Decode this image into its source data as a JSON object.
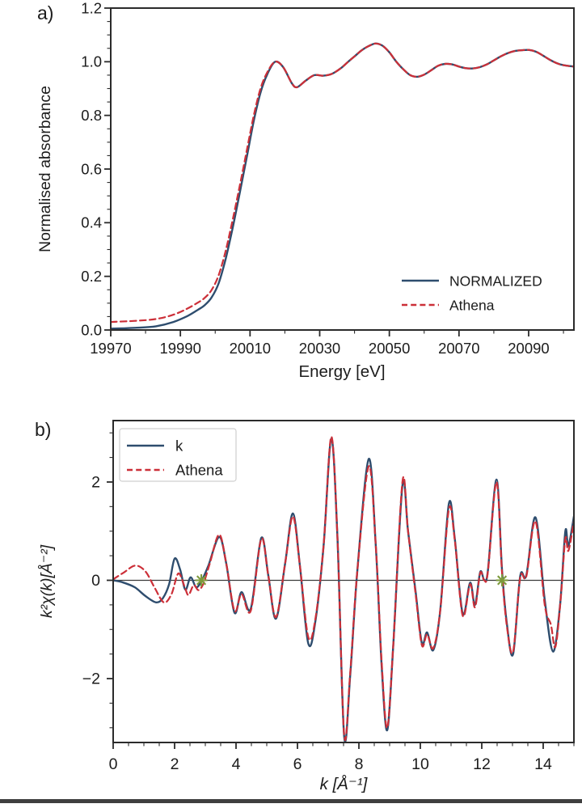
{
  "page": {
    "background": "#ffffff",
    "bottom_bar_color": "#3f3f3f"
  },
  "chart_data": [
    {
      "type": "line",
      "panel_label": "a)",
      "xlabel": "Energy [eV]",
      "ylabel": "Normalised absorbance",
      "xlim": [
        19970,
        20103
      ],
      "ylim": [
        0.0,
        1.2
      ],
      "xticks": [
        19970,
        19990,
        20010,
        20030,
        20050,
        20070,
        20090
      ],
      "yticks": [
        0.0,
        0.2,
        0.4,
        0.6,
        0.8,
        1.0,
        1.2
      ],
      "x_minor_step": 10,
      "y_minor_step": 0.05,
      "grid": false,
      "legend": {
        "position": "lower-right",
        "box": false,
        "entries": [
          {
            "label": "NORMALIZED",
            "color": "#2e4d6e",
            "dash": false
          },
          {
            "label": "Athena",
            "color": "#cc2f38",
            "dash": true
          }
        ]
      },
      "series": [
        {
          "name": "NORMALIZED",
          "color": "#2e4d6e",
          "dash": false,
          "points": [
            [
              19970,
              0.005
            ],
            [
              19977,
              0.008
            ],
            [
              19983,
              0.014
            ],
            [
              19988,
              0.03
            ],
            [
              19992,
              0.052
            ],
            [
              19995,
              0.075
            ],
            [
              19997,
              0.093
            ],
            [
              19999,
              0.122
            ],
            [
              20001,
              0.175
            ],
            [
              20003,
              0.265
            ],
            [
              20005,
              0.38
            ],
            [
              20007,
              0.508
            ],
            [
              20009,
              0.64
            ],
            [
              20011,
              0.775
            ],
            [
              20013,
              0.885
            ],
            [
              20015,
              0.955
            ],
            [
              20017.2,
              1.0
            ],
            [
              20019.5,
              0.98
            ],
            [
              20022,
              0.92
            ],
            [
              20023.5,
              0.905
            ],
            [
              20026,
              0.93
            ],
            [
              20028.5,
              0.95
            ],
            [
              20031,
              0.948
            ],
            [
              20033.5,
              0.955
            ],
            [
              20036,
              0.975
            ],
            [
              20038,
              0.998
            ],
            [
              20040,
              1.02
            ],
            [
              20042,
              1.042
            ],
            [
              20044,
              1.058
            ],
            [
              20046,
              1.068
            ],
            [
              20048,
              1.06
            ],
            [
              20050,
              1.035
            ],
            [
              20052,
              1.0
            ],
            [
              20054,
              0.972
            ],
            [
              20056,
              0.95
            ],
            [
              20058,
              0.944
            ],
            [
              20060,
              0.952
            ],
            [
              20062,
              0.968
            ],
            [
              20064,
              0.985
            ],
            [
              20066,
              0.992
            ],
            [
              20068,
              0.99
            ],
            [
              20070,
              0.982
            ],
            [
              20072,
              0.976
            ],
            [
              20074,
              0.975
            ],
            [
              20076,
              0.98
            ],
            [
              20078,
              0.99
            ],
            [
              20080,
              1.005
            ],
            [
              20082,
              1.02
            ],
            [
              20084,
              1.032
            ],
            [
              20086,
              1.04
            ],
            [
              20088,
              1.043
            ],
            [
              20090,
              1.044
            ],
            [
              20092,
              1.038
            ],
            [
              20094,
              1.024
            ],
            [
              20096,
              1.008
            ],
            [
              20098,
              0.995
            ],
            [
              20100,
              0.987
            ],
            [
              20103,
              0.982
            ]
          ]
        },
        {
          "name": "Athena",
          "color": "#cc2f38",
          "dash": true,
          "points": [
            [
              19970,
              0.03
            ],
            [
              19977,
              0.034
            ],
            [
              19983,
              0.041
            ],
            [
              19988,
              0.057
            ],
            [
              19992,
              0.08
            ],
            [
              19995,
              0.102
            ],
            [
              19997,
              0.12
            ],
            [
              19999,
              0.15
            ],
            [
              20001,
              0.205
            ],
            [
              20003,
              0.295
            ],
            [
              20005,
              0.41
            ],
            [
              20007,
              0.535
            ],
            [
              20009,
              0.665
            ],
            [
              20011,
              0.795
            ],
            [
              20013,
              0.9
            ],
            [
              20015,
              0.962
            ],
            [
              20017.2,
              1.0
            ],
            [
              20019.5,
              0.98
            ],
            [
              20022,
              0.92
            ],
            [
              20023.5,
              0.905
            ],
            [
              20026,
              0.93
            ],
            [
              20028.5,
              0.95
            ],
            [
              20031,
              0.948
            ],
            [
              20033.5,
              0.955
            ],
            [
              20036,
              0.975
            ],
            [
              20038,
              0.998
            ],
            [
              20040,
              1.02
            ],
            [
              20042,
              1.042
            ],
            [
              20044,
              1.058
            ],
            [
              20046,
              1.068
            ],
            [
              20048,
              1.06
            ],
            [
              20050,
              1.035
            ],
            [
              20052,
              1.0
            ],
            [
              20054,
              0.972
            ],
            [
              20056,
              0.95
            ],
            [
              20058,
              0.944
            ],
            [
              20060,
              0.952
            ],
            [
              20062,
              0.968
            ],
            [
              20064,
              0.985
            ],
            [
              20066,
              0.992
            ],
            [
              20068,
              0.99
            ],
            [
              20070,
              0.982
            ],
            [
              20072,
              0.976
            ],
            [
              20074,
              0.975
            ],
            [
              20076,
              0.98
            ],
            [
              20078,
              0.99
            ],
            [
              20080,
              1.005
            ],
            [
              20082,
              1.02
            ],
            [
              20084,
              1.032
            ],
            [
              20086,
              1.04
            ],
            [
              20088,
              1.043
            ],
            [
              20090,
              1.044
            ],
            [
              20092,
              1.038
            ],
            [
              20094,
              1.024
            ],
            [
              20096,
              1.008
            ],
            [
              20098,
              0.995
            ],
            [
              20100,
              0.987
            ],
            [
              20103,
              0.982
            ]
          ]
        }
      ]
    },
    {
      "type": "line",
      "panel_label": "b)",
      "xlabel": "k [Å⁻¹]",
      "ylabel": "k²χ(k)[Å⁻²]",
      "xlim": [
        0,
        15
      ],
      "ylim": [
        -3.3,
        3.25
      ],
      "xticks": [
        0,
        2,
        4,
        6,
        8,
        10,
        12,
        14
      ],
      "yticks": [
        -2,
        0,
        2
      ],
      "x_minor_step": 0.5,
      "y_minor_step": 0.5,
      "grid": false,
      "zero_line": true,
      "markers": {
        "symbol": "asterisk",
        "color": "#7d9a3c",
        "points": [
          [
            2.87,
            0
          ],
          [
            12.66,
            0
          ]
        ]
      },
      "legend": {
        "position": "upper-left",
        "box": true,
        "entries": [
          {
            "label": "k",
            "color": "#2e4d6e",
            "dash": false
          },
          {
            "label": "Athena",
            "color": "#cc2f38",
            "dash": true
          }
        ]
      },
      "series": [
        {
          "name": "k",
          "color": "#2e4d6e",
          "dash": false,
          "points": [
            [
              0,
              0
            ],
            [
              0.3,
              -0.04
            ],
            [
              0.7,
              -0.14
            ],
            [
              1.05,
              -0.32
            ],
            [
              1.4,
              -0.45
            ],
            [
              1.62,
              -0.36
            ],
            [
              1.82,
              -0.08
            ],
            [
              2.0,
              0.44
            ],
            [
              2.18,
              0.22
            ],
            [
              2.35,
              -0.19
            ],
            [
              2.52,
              0.06
            ],
            [
              2.7,
              -0.14
            ],
            [
              2.87,
              -0.02
            ],
            [
              3.1,
              0.3
            ],
            [
              3.45,
              0.88
            ],
            [
              3.68,
              0.35
            ],
            [
              3.95,
              -0.66
            ],
            [
              4.18,
              -0.24
            ],
            [
              4.48,
              -0.58
            ],
            [
              4.82,
              0.86
            ],
            [
              5.05,
              0.1
            ],
            [
              5.3,
              -0.78
            ],
            [
              5.6,
              0.35
            ],
            [
              5.85,
              1.36
            ],
            [
              6.08,
              0.3
            ],
            [
              6.35,
              -1.28
            ],
            [
              6.58,
              -0.85
            ],
            [
              6.85,
              0.7
            ],
            [
              7.1,
              2.88
            ],
            [
              7.3,
              0.9
            ],
            [
              7.52,
              -3.18
            ],
            [
              7.72,
              -1.9
            ],
            [
              7.95,
              0.2
            ],
            [
              8.32,
              2.47
            ],
            [
              8.55,
              0.7
            ],
            [
              8.74,
              -1.73
            ],
            [
              8.92,
              -3.05
            ],
            [
              9.12,
              -1.3
            ],
            [
              9.42,
              1.95
            ],
            [
              9.6,
              1.0
            ],
            [
              9.85,
              -0.25
            ],
            [
              10.05,
              -1.28
            ],
            [
              10.22,
              -1.06
            ],
            [
              10.42,
              -1.42
            ],
            [
              10.65,
              -0.6
            ],
            [
              10.93,
              1.56
            ],
            [
              11.12,
              0.85
            ],
            [
              11.38,
              -0.68
            ],
            [
              11.62,
              -0.05
            ],
            [
              11.78,
              -0.5
            ],
            [
              11.95,
              0.17
            ],
            [
              12.08,
              0.01
            ],
            [
              12.2,
              0.2
            ],
            [
              12.48,
              2.05
            ],
            [
              12.66,
              0.2
            ],
            [
              12.82,
              -0.9
            ],
            [
              13.02,
              -1.5
            ],
            [
              13.25,
              0.08
            ],
            [
              13.45,
              0.1
            ],
            [
              13.75,
              1.28
            ],
            [
              14.05,
              -0.4
            ],
            [
              14.32,
              -1.45
            ],
            [
              14.55,
              -0.5
            ],
            [
              14.72,
              1.0
            ],
            [
              14.82,
              0.7
            ],
            [
              15.0,
              1.3
            ]
          ]
        },
        {
          "name": "Athena",
          "color": "#cc2f38",
          "dash": true,
          "points": [
            [
              0,
              0.02
            ],
            [
              0.35,
              0.16
            ],
            [
              0.72,
              0.3
            ],
            [
              1.05,
              0.18
            ],
            [
              1.35,
              -0.15
            ],
            [
              1.65,
              -0.45
            ],
            [
              1.9,
              -0.28
            ],
            [
              2.12,
              0.14
            ],
            [
              2.32,
              -0.12
            ],
            [
              2.45,
              -0.3
            ],
            [
              2.62,
              -0.1
            ],
            [
              2.78,
              -0.2
            ],
            [
              2.95,
              -0.05
            ],
            [
              3.15,
              0.35
            ],
            [
              3.45,
              0.93
            ],
            [
              3.68,
              0.35
            ],
            [
              3.95,
              -0.62
            ],
            [
              4.18,
              -0.28
            ],
            [
              4.48,
              -0.62
            ],
            [
              4.82,
              0.84
            ],
            [
              5.05,
              0.1
            ],
            [
              5.3,
              -0.75
            ],
            [
              5.6,
              0.35
            ],
            [
              5.85,
              1.3
            ],
            [
              6.08,
              0.3
            ],
            [
              6.35,
              -1.15
            ],
            [
              6.58,
              -0.8
            ],
            [
              6.85,
              0.7
            ],
            [
              7.1,
              2.92
            ],
            [
              7.3,
              0.9
            ],
            [
              7.52,
              -3.15
            ],
            [
              7.72,
              -1.85
            ],
            [
              7.95,
              0.2
            ],
            [
              8.32,
              2.32
            ],
            [
              8.55,
              0.7
            ],
            [
              8.74,
              -1.65
            ],
            [
              8.92,
              -3.0
            ],
            [
              9.12,
              -1.3
            ],
            [
              9.42,
              2.02
            ],
            [
              9.6,
              1.0
            ],
            [
              9.85,
              -0.3
            ],
            [
              10.05,
              -1.32
            ],
            [
              10.22,
              -1.1
            ],
            [
              10.42,
              -1.38
            ],
            [
              10.65,
              -0.6
            ],
            [
              10.93,
              1.45
            ],
            [
              11.12,
              0.82
            ],
            [
              11.38,
              -0.72
            ],
            [
              11.62,
              -0.08
            ],
            [
              11.78,
              -0.55
            ],
            [
              11.95,
              0.15
            ],
            [
              12.08,
              0.0
            ],
            [
              12.2,
              0.18
            ],
            [
              12.48,
              2.0
            ],
            [
              12.66,
              0.15
            ],
            [
              12.82,
              -0.95
            ],
            [
              13.02,
              -1.45
            ],
            [
              13.25,
              0.05
            ],
            [
              13.45,
              0.08
            ],
            [
              13.75,
              1.2
            ],
            [
              14.05,
              -0.5
            ],
            [
              14.25,
              -0.9
            ],
            [
              14.4,
              -1.35
            ],
            [
              14.58,
              -0.3
            ],
            [
              14.72,
              0.85
            ],
            [
              14.82,
              0.6
            ],
            [
              15.0,
              1.2
            ]
          ]
        }
      ]
    }
  ]
}
